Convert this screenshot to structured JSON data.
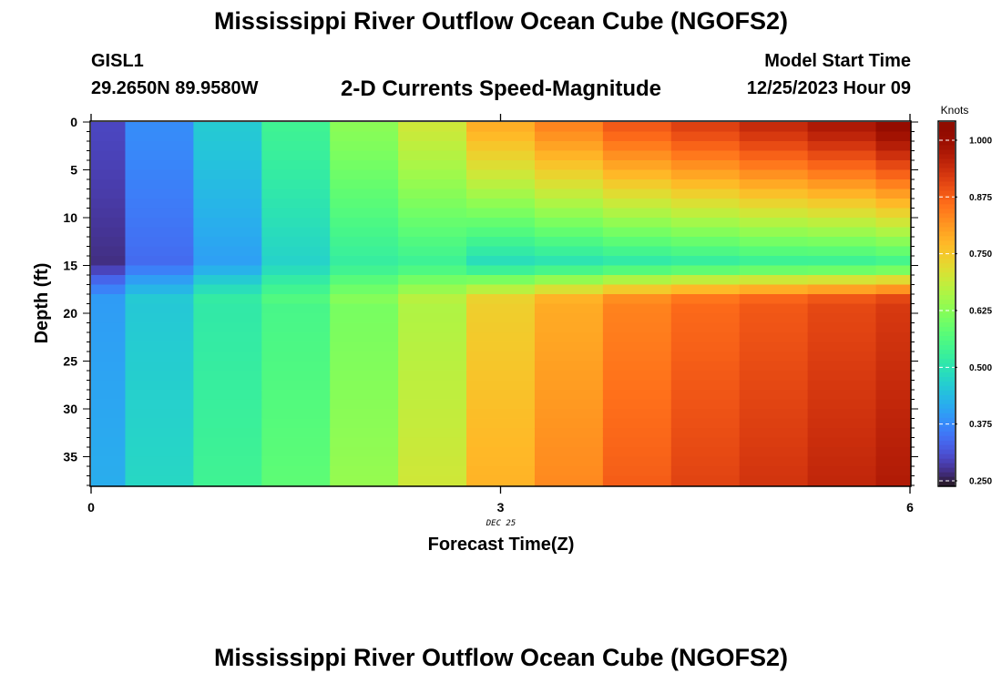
{
  "header": {
    "title": "Mississippi River Outflow Ocean Cube (NGOFS2)",
    "station": "GISL1",
    "coords": "29.2650N  89.9580W",
    "subtitle": "2-D Currents Speed-Magnitude",
    "model_start_label": "Model Start Time",
    "model_start_value": "12/25/2023 Hour 09"
  },
  "footer": {
    "title": "Mississippi River Outflow Ocean Cube (NGOFS2)"
  },
  "chart_data": {
    "type": "heatmap",
    "xlabel": "Forecast Time(Z)",
    "ylabel": "Depth (ft)",
    "x_date_label": "DEC 25",
    "xlim": [
      0,
      6
    ],
    "ylim": [
      38,
      0
    ],
    "x_tick_labels": [
      "0",
      "3",
      "6"
    ],
    "x_ticks": [
      0,
      3,
      6
    ],
    "y_ticks": [
      0,
      5,
      10,
      15,
      20,
      25,
      30,
      35
    ],
    "y_tick_labels": [
      "0",
      "5",
      "10",
      "15",
      "20",
      "25",
      "30",
      "35"
    ],
    "colorbar": {
      "label": "Knots",
      "min": 0.24,
      "max": 1.04,
      "ticks": [
        0.25,
        0.375,
        0.5,
        0.625,
        0.75,
        0.875,
        1.0
      ],
      "tick_labels": [
        "0.250",
        "0.375",
        "0.500",
        "0.625",
        "0.750",
        "0.875",
        "1.000"
      ],
      "colormap": "turbo"
    },
    "time_columns": {
      "edges": [
        0,
        0.25,
        0.75,
        1.25,
        1.75,
        2.25,
        2.75,
        3.25,
        3.75,
        4.25,
        4.75,
        5.25,
        5.75,
        6.0
      ],
      "values": [
        0,
        0.5,
        1.0,
        1.5,
        2.0,
        2.5,
        3.0,
        3.5,
        4.0,
        4.5,
        5.0,
        5.5,
        6.0
      ]
    },
    "depth_bins": {
      "top": 0,
      "bottom": 38,
      "count": 38
    },
    "speed_profiles": [
      {
        "time": 0,
        "surface": 0.3,
        "mid": 0.27,
        "bottom": 0.42
      },
      {
        "time": 0.5,
        "surface": 0.38,
        "mid": 0.34,
        "bottom": 0.48
      },
      {
        "time": 1.0,
        "surface": 0.46,
        "mid": 0.4,
        "bottom": 0.54
      },
      {
        "time": 1.5,
        "surface": 0.54,
        "mid": 0.47,
        "bottom": 0.58
      },
      {
        "time": 2.0,
        "surface": 0.63,
        "mid": 0.52,
        "bottom": 0.64
      },
      {
        "time": 2.5,
        "surface": 0.7,
        "mid": 0.53,
        "bottom": 0.7
      },
      {
        "time": 3.0,
        "surface": 0.79,
        "mid": 0.48,
        "bottom": 0.78
      },
      {
        "time": 3.5,
        "surface": 0.84,
        "mid": 0.49,
        "bottom": 0.83
      },
      {
        "time": 4.0,
        "surface": 0.89,
        "mid": 0.5,
        "bottom": 0.88
      },
      {
        "time": 4.5,
        "surface": 0.92,
        "mid": 0.51,
        "bottom": 0.91
      },
      {
        "time": 5.0,
        "surface": 0.95,
        "mid": 0.52,
        "bottom": 0.93
      },
      {
        "time": 5.5,
        "surface": 0.98,
        "mid": 0.52,
        "bottom": 0.95
      },
      {
        "time": 6.0,
        "surface": 1.02,
        "mid": 0.53,
        "bottom": 0.97
      }
    ]
  }
}
